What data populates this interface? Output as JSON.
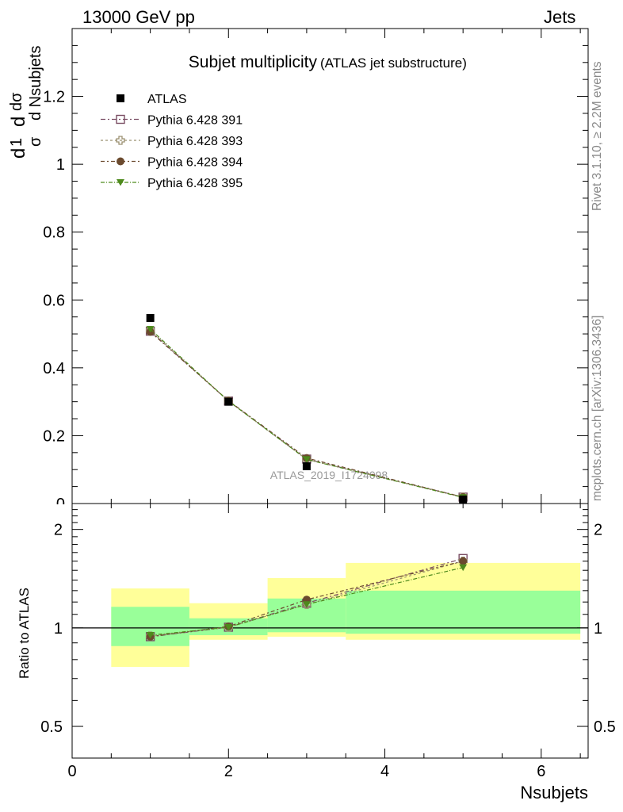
{
  "header": {
    "left": "13000 GeV pp",
    "right": "Jets"
  },
  "side_labels": {
    "rivet": "Rivet 3.1.10, ≥ 2.2M events",
    "mcplots": "mcplots.cern.ch [arXiv:1306.3436]"
  },
  "chart_data": [
    {
      "type": "scatter",
      "title": "Subjet multiplicity",
      "subtitle": "(ATLAS jet substructure)",
      "watermark": "ATLAS_2019_I1724098",
      "xlabel": "Nsubjets",
      "ylabel_parts": {
        "d1": "d",
        "one": "1",
        "sigma": "σ",
        "dsigma": "dσ",
        "dn": "d Nsubjets"
      },
      "xlim": [
        0,
        6.6
      ],
      "ylim": [
        0,
        1.4
      ],
      "yticks": [
        0,
        0.2,
        0.4,
        0.6,
        0.8,
        1,
        1.2
      ],
      "ytick_labels": [
        "0",
        "0.2",
        "0.4",
        "0.6",
        "0.8",
        "1",
        "1.2"
      ],
      "legend_position": "top-left",
      "data": {
        "name": "ATLAS",
        "x": [
          1,
          2,
          3,
          5
        ],
        "y": [
          0.547,
          0.3,
          0.11,
          0.012
        ],
        "color": "#000000"
      },
      "series": [
        {
          "name": "Pythia 6.428 391",
          "x": [
            1,
            2,
            3,
            5
          ],
          "y": [
            0.508,
            0.302,
            0.131,
            0.019
          ],
          "color": "#7a4e64",
          "marker": "open-square"
        },
        {
          "name": "Pythia 6.428 393",
          "x": [
            1,
            2,
            3,
            5
          ],
          "y": [
            0.51,
            0.302,
            0.13,
            0.019
          ],
          "color": "#9b9070",
          "marker": "open-cross"
        },
        {
          "name": "Pythia 6.428 394",
          "x": [
            1,
            2,
            3,
            5
          ],
          "y": [
            0.506,
            0.303,
            0.134,
            0.019
          ],
          "color": "#6b4a2e",
          "marker": "filled-circle"
        },
        {
          "name": "Pythia 6.428 395",
          "x": [
            1,
            2,
            3,
            5
          ],
          "y": [
            0.514,
            0.302,
            0.13,
            0.018
          ],
          "color": "#4e8a1c",
          "marker": "filled-triangle-down"
        }
      ]
    },
    {
      "type": "scatter",
      "ylabel": "Ratio to ATLAS",
      "xlabel": "Nsubjets",
      "xlim": [
        0,
        6.6
      ],
      "ylim": [
        0.4,
        2.4
      ],
      "log_y": true,
      "yticks": [
        0.5,
        1,
        2
      ],
      "ytick_labels": [
        "0.5",
        "1",
        "2"
      ],
      "xticks": [
        0,
        2,
        4,
        6
      ],
      "xtick_labels": [
        "0",
        "2",
        "4",
        "6"
      ],
      "bands": [
        {
          "xlo": 0.5,
          "xhi": 1.5,
          "inner": [
            0.88,
            1.16
          ],
          "outer": [
            0.76,
            1.32
          ]
        },
        {
          "xlo": 1.5,
          "xhi": 2.5,
          "inner": [
            0.95,
            1.07
          ],
          "outer": [
            0.92,
            1.19
          ]
        },
        {
          "xlo": 2.5,
          "xhi": 3.5,
          "inner": [
            0.97,
            1.23
          ],
          "outer": [
            0.94,
            1.42
          ]
        },
        {
          "xlo": 3.5,
          "xhi": 6.5,
          "inner": [
            0.96,
            1.3
          ],
          "outer": [
            0.92,
            1.58
          ]
        }
      ],
      "band_colors": {
        "inner": "#99ff99",
        "outer": "#ffff99"
      },
      "series": [
        {
          "name": "Pythia 6.428 391",
          "x": [
            1,
            2,
            3,
            5
          ],
          "y": [
            0.94,
            1.005,
            1.19,
            1.63
          ],
          "color": "#7a4e64",
          "marker": "open-square"
        },
        {
          "name": "Pythia 6.428 393",
          "x": [
            1,
            2,
            3,
            5
          ],
          "y": [
            0.945,
            1.005,
            1.18,
            1.6
          ],
          "color": "#9b9070",
          "marker": "open-cross"
        },
        {
          "name": "Pythia 6.428 394",
          "x": [
            1,
            2,
            3,
            5
          ],
          "y": [
            0.94,
            1.01,
            1.22,
            1.6
          ],
          "color": "#6b4a2e",
          "marker": "filled-circle"
        },
        {
          "name": "Pythia 6.428 395",
          "x": [
            1,
            2,
            3,
            5
          ],
          "y": [
            0.95,
            1.005,
            1.18,
            1.53
          ],
          "color": "#4e8a1c",
          "marker": "filled-triangle-down"
        }
      ]
    }
  ]
}
